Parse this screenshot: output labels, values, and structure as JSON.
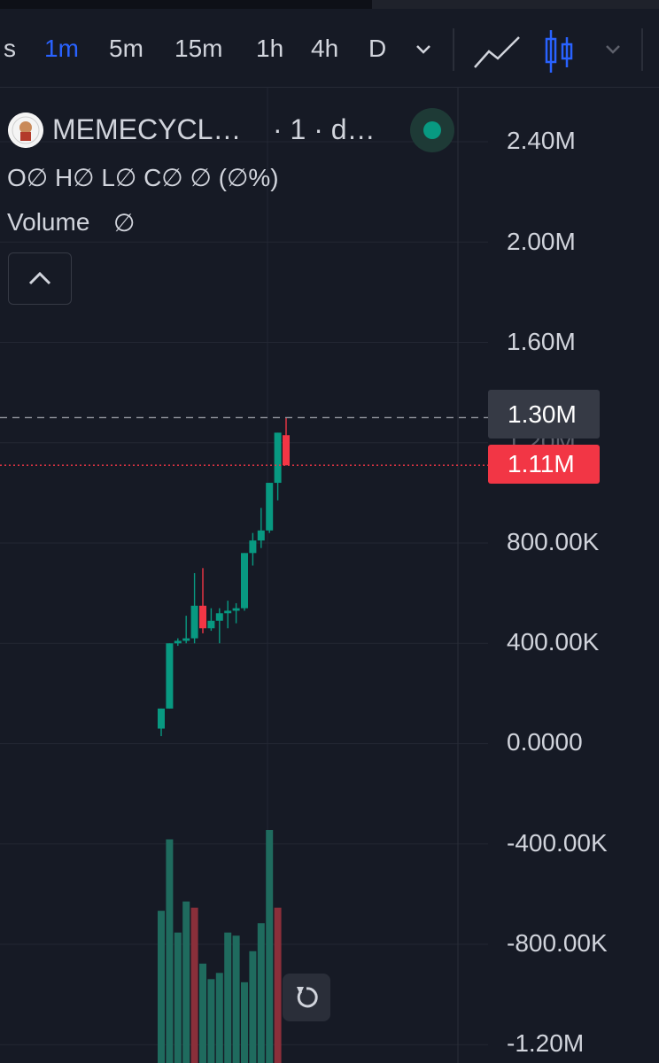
{
  "toolbar": {
    "timeframes": [
      {
        "label": "s",
        "active": false
      },
      {
        "label": "1m",
        "active": true
      },
      {
        "label": "5m",
        "active": false
      },
      {
        "label": "15m",
        "active": false
      },
      {
        "label": "1h",
        "active": false
      },
      {
        "label": "4h",
        "active": false
      },
      {
        "label": "D",
        "active": false
      }
    ],
    "icons": [
      "chevron-down-icon",
      "line-chart-icon",
      "candlestick-icon",
      "chevron-down-icon"
    ]
  },
  "legend": {
    "symbol": "MEMECYCL…",
    "interval": "· 1 · d…",
    "ohlc": "O∅ H∅ L∅ C∅ ∅ (∅%)",
    "volume_label": "Volume",
    "volume_value": "∅"
  },
  "price_axis": {
    "labels": [
      "2.40M",
      "2.00M",
      "1.60M",
      "800.00K",
      "400.00K",
      "0.0000",
      "-400.00K",
      "-800.00K",
      "-1.20M"
    ],
    "hidden_label": "1.20M",
    "crosshair_label": "1.30M",
    "last_price_label": "1.11M"
  },
  "colors": {
    "background": "#161a25",
    "up": "#089981",
    "down": "#f23645",
    "accent": "#2962ff",
    "text": "#d1d4dc"
  },
  "chart_data": {
    "type": "candlestick",
    "ylim": [
      -1400000,
      2600000
    ],
    "crosshair_price": 1300000,
    "last_price": 1110000,
    "candles": [
      {
        "o": 60000,
        "h": 140000,
        "l": 30000,
        "c": 140000
      },
      {
        "o": 140000,
        "h": 400000,
        "l": 140000,
        "c": 400000
      },
      {
        "o": 400000,
        "h": 420000,
        "l": 390000,
        "c": 410000
      },
      {
        "o": 410000,
        "h": 510000,
        "l": 400000,
        "c": 420000
      },
      {
        "o": 420000,
        "h": 680000,
        "l": 400000,
        "c": 550000
      },
      {
        "o": 550000,
        "h": 700000,
        "l": 440000,
        "c": 460000
      },
      {
        "o": 460000,
        "h": 540000,
        "l": 450000,
        "c": 490000
      },
      {
        "o": 490000,
        "h": 540000,
        "l": 400000,
        "c": 520000
      },
      {
        "o": 520000,
        "h": 570000,
        "l": 460000,
        "c": 530000
      },
      {
        "o": 530000,
        "h": 560000,
        "l": 480000,
        "c": 540000
      },
      {
        "o": 540000,
        "h": 760000,
        "l": 530000,
        "c": 760000
      },
      {
        "o": 760000,
        "h": 840000,
        "l": 710000,
        "c": 810000
      },
      {
        "o": 810000,
        "h": 940000,
        "l": 780000,
        "c": 850000
      },
      {
        "o": 850000,
        "h": 1040000,
        "l": 840000,
        "c": 1040000
      },
      {
        "o": 1040000,
        "h": 1240000,
        "l": 970000,
        "c": 1240000
      },
      {
        "o": 1230000,
        "h": 1300000,
        "l": 1110000,
        "c": 1110000
      }
    ],
    "volume": [
      {
        "v": 0.49,
        "dir": "up"
      },
      {
        "v": 0.72,
        "dir": "up"
      },
      {
        "v": 0.42,
        "dir": "up"
      },
      {
        "v": 0.52,
        "dir": "up"
      },
      {
        "v": 0.5,
        "dir": "down"
      },
      {
        "v": 0.32,
        "dir": "up"
      },
      {
        "v": 0.27,
        "dir": "up"
      },
      {
        "v": 0.29,
        "dir": "up"
      },
      {
        "v": 0.42,
        "dir": "up"
      },
      {
        "v": 0.41,
        "dir": "up"
      },
      {
        "v": 0.26,
        "dir": "up"
      },
      {
        "v": 0.36,
        "dir": "up"
      },
      {
        "v": 0.45,
        "dir": "up"
      },
      {
        "v": 0.75,
        "dir": "up"
      },
      {
        "v": 0.5,
        "dir": "down"
      }
    ]
  }
}
